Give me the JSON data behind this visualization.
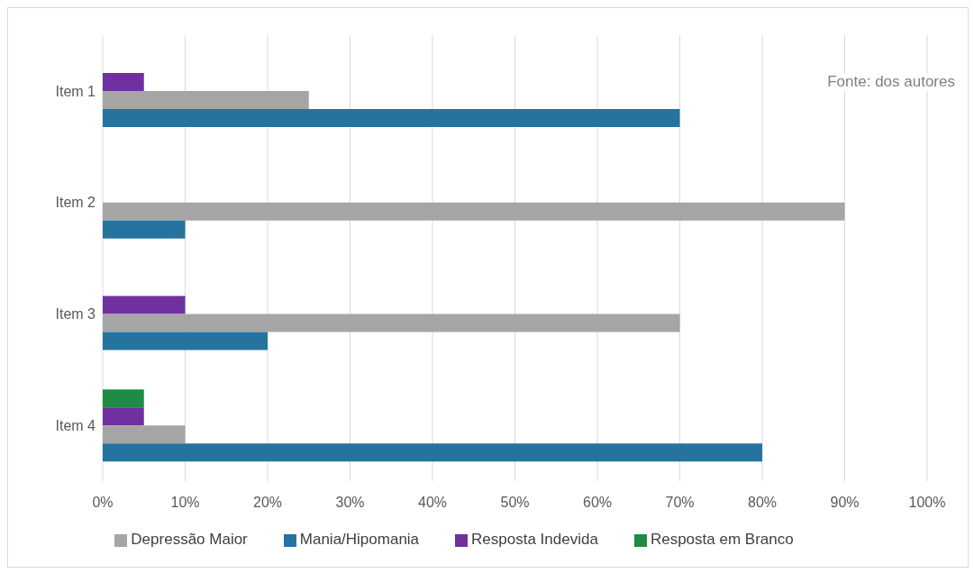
{
  "chart_data": {
    "type": "bar",
    "orientation": "horizontal",
    "categories": [
      "Item 1",
      "Item 2",
      "Item 3",
      "Item 4"
    ],
    "series": [
      {
        "name": "Resposta em Branco",
        "color": "#1e8c45",
        "values": [
          0,
          0,
          0,
          5
        ]
      },
      {
        "name": "Resposta Indevida",
        "color": "#7030a0",
        "values": [
          5,
          0,
          10,
          5
        ]
      },
      {
        "name": "Depressão Maior",
        "color": "#a5a5a5",
        "values": [
          25,
          90,
          70,
          10
        ]
      },
      {
        "name": "Mania/Hipomania",
        "color": "#2574a0",
        "values": [
          70,
          10,
          20,
          80
        ]
      }
    ],
    "xlim": [
      0,
      100
    ],
    "xticks": [
      {
        "value": 0,
        "label": "0%"
      },
      {
        "value": 10,
        "label": "10%"
      },
      {
        "value": 20,
        "label": "20%"
      },
      {
        "value": 30,
        "label": "30%"
      },
      {
        "value": 40,
        "label": "40%"
      },
      {
        "value": 50,
        "label": "50%"
      },
      {
        "value": 60,
        "label": "60%"
      },
      {
        "value": 70,
        "label": "70%"
      },
      {
        "value": 80,
        "label": "80%"
      },
      {
        "value": 90,
        "label": "90%"
      },
      {
        "value": 100,
        "label": "100%"
      }
    ],
    "grid": "x",
    "legend": "bottom",
    "annotations": [
      "Fonte: dos autores"
    ]
  }
}
